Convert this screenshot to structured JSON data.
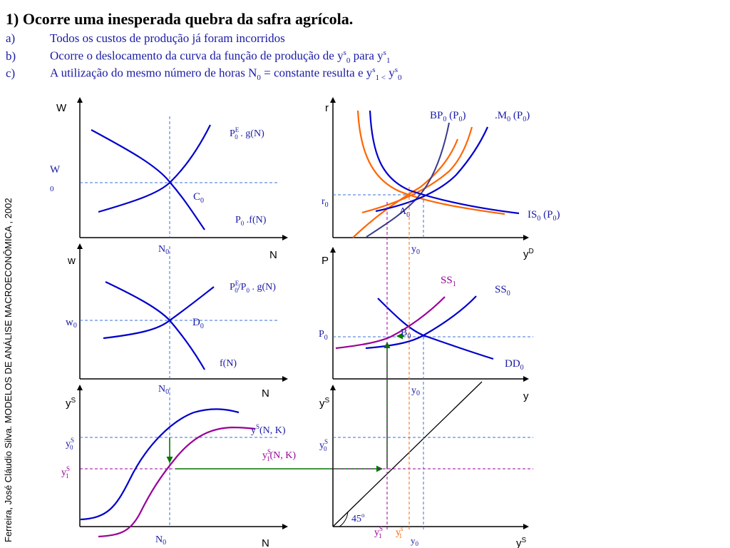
{
  "header": {
    "title": "1) Ocorre uma inesperada quebra da safra agrícola.",
    "items": [
      {
        "label": "a)",
        "text": "Todos os custos de produção já foram incorridos"
      },
      {
        "label": "b)",
        "text": "Ocorre o deslocamento da curva da função de produção de y",
        "sup": "s",
        "sub": "0",
        "text2": " para y",
        "sup2": "s",
        "sub2": "1"
      },
      {
        "label": "c)",
        "text": "A utilização do mesmo número de horas N",
        "sub": "0",
        "text2": " = constante resulta e y",
        "sup2": "s",
        "sub2": "1 <",
        "text3": " y",
        "sup3": "s",
        "sub3": "0"
      }
    ]
  },
  "sidebar": {
    "credit": "Ferreira, José Cláudio Silva. MODELOS DE ANÁLISE MACROECONÔMICA , 2002"
  },
  "colors": {
    "blue": "#0000cc",
    "purple": "#990099",
    "orange": "#ff6600",
    "green": "#007700",
    "slate": "#3c3c8c",
    "dash_blue": "#3a6fd8",
    "text_blue": "#1a1aa6"
  },
  "panels": {
    "labor_market": {
      "y_axis": "W",
      "x_axis": "N",
      "w_label": "W",
      "w_sub": "0",
      "n_label": "N",
      "n_sub": "0",
      "curve_demand": {
        "main": "P",
        "sup": "E",
        "sub": "0",
        "rest": " . g(N)"
      },
      "curve_supply": {
        "main": "P",
        "sub": "0",
        "rest": " .f(N)"
      },
      "point": {
        "main": "C",
        "sub": "0"
      }
    },
    "real_wage": {
      "y_axis": "w",
      "x_axis": "N",
      "w_label": "w",
      "w_sub": "0",
      "n_label": "N",
      "n_sub": "0",
      "curve_demand": {
        "main": "P",
        "sup": "E",
        "sub": "0",
        "rest": "/P",
        "sub2": "0",
        "rest2": " . g(N)"
      },
      "curve_supply": {
        "main": "f(N)"
      },
      "point": {
        "main": "D",
        "sub": "0"
      }
    },
    "production": {
      "y_axis": "y",
      "y_sup": "S",
      "x_axis": "N",
      "y0_label": "y",
      "y0_sup": "S",
      "y0_sub": "0",
      "y1_label": "y",
      "y1_sup": "S",
      "y1_sub": "1",
      "n_label": "N",
      "n_sub": "0",
      "curve0": {
        "main": "y",
        "sup": "S",
        "rest": "(N, K)"
      },
      "curve1": {
        "main": "y",
        "sup": "S",
        "sub": "1",
        "rest": "(N, K)"
      }
    },
    "is_lm_bp": {
      "y_axis": "r",
      "x_axis": "y",
      "x_sup": "D",
      "r_label": "r",
      "r_sub": "0",
      "y0_label": "y",
      "y0_sub": "0",
      "bp": {
        "main": "BP",
        "sub": "0",
        "rest": " (P",
        "sub2": "0",
        "rest2": ")"
      },
      "lm": {
        "main": ".M",
        "sub": "0",
        "rest": " (P",
        "sub2": "0",
        "rest2": ")"
      },
      "is": {
        "main": "IS",
        "sub": "0",
        "rest": " (P",
        "sub2": "0",
        "rest2": ")"
      },
      "point": {
        "main": "A",
        "sub": "0"
      }
    },
    "ad_as": {
      "y_axis": "P",
      "x_axis": "y",
      "p_label": "P",
      "p_sub": "0",
      "y0_label": "y",
      "y0_sub": "0",
      "ss1": {
        "main": "SS",
        "sub": "1"
      },
      "ss0": {
        "main": "SS",
        "sub": "0"
      },
      "dd0": {
        "main": "DD",
        "sub": "0"
      },
      "point": {
        "main": "B",
        "sub": "0"
      }
    },
    "forty_five": {
      "y_axis": "y",
      "y_sup": "S",
      "x_axis": "y",
      "x_sup": "S",
      "y0_label": "y",
      "y0_sup": "S",
      "y0_sub": "0",
      "angle": "45",
      "angle_sup": "o",
      "x_ys1": {
        "main": "y",
        "sup": "S",
        "sub": "1"
      },
      "x_y1_orange": {
        "main": "y",
        "sup": "s",
        "sub": "1"
      },
      "x_y0": {
        "main": "y",
        "sub": "0"
      }
    }
  }
}
